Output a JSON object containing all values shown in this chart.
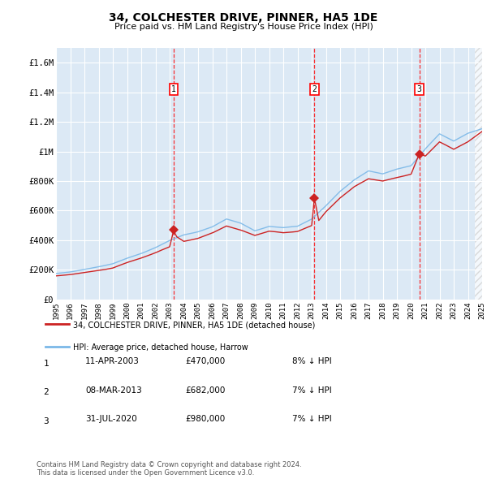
{
  "title": "34, COLCHESTER DRIVE, PINNER, HA5 1DE",
  "subtitle": "Price paid vs. HM Land Registry's House Price Index (HPI)",
  "background_color": "#dce9f5",
  "hpi_color": "#7bb8e8",
  "price_color": "#cc2222",
  "ylim": [
    0,
    1700000
  ],
  "yticks": [
    0,
    200000,
    400000,
    600000,
    800000,
    1000000,
    1200000,
    1400000,
    1600000
  ],
  "ytick_labels": [
    "£0",
    "£200K",
    "£400K",
    "£600K",
    "£800K",
    "£1M",
    "£1.2M",
    "£1.4M",
    "£1.6M"
  ],
  "footer_text": "Contains HM Land Registry data © Crown copyright and database right 2024.\nThis data is licensed under the Open Government Licence v3.0.",
  "legend_label_red": "34, COLCHESTER DRIVE, PINNER, HA5 1DE (detached house)",
  "legend_label_blue": "HPI: Average price, detached house, Harrow",
  "transactions": [
    {
      "num": 1,
      "date": "11-APR-2003",
      "price": 470000,
      "pct": "8%",
      "x_year": 2003.28,
      "y_val": 470000
    },
    {
      "num": 2,
      "date": "08-MAR-2013",
      "price": 682000,
      "pct": "7%",
      "x_year": 2013.19,
      "y_val": 682000
    },
    {
      "num": 3,
      "date": "31-JUL-2020",
      "price": 980000,
      "pct": "7%",
      "x_year": 2020.58,
      "y_val": 980000
    }
  ],
  "xmin": 1995.0,
  "xmax": 2025.0,
  "hatch_start": 2024.5,
  "xtick_years": [
    1995,
    1996,
    1997,
    1998,
    1999,
    2000,
    2001,
    2002,
    2003,
    2004,
    2005,
    2006,
    2007,
    2008,
    2009,
    2010,
    2011,
    2012,
    2013,
    2014,
    2015,
    2016,
    2017,
    2018,
    2019,
    2020,
    2021,
    2022,
    2023,
    2024,
    2025
  ]
}
